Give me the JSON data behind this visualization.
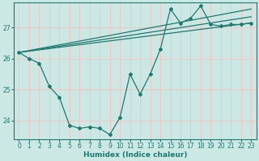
{
  "xlabel": "Humidex (Indice chaleur)",
  "ylabel": "",
  "background_color": "#cce8e5",
  "grid_color": "#f0c8c8",
  "line_color": "#1a7a6e",
  "xlim": [
    -0.5,
    23.5
  ],
  "ylim": [
    23.4,
    27.8
  ],
  "yticks": [
    24,
    25,
    26,
    27
  ],
  "xticks": [
    0,
    1,
    2,
    3,
    4,
    5,
    6,
    7,
    8,
    9,
    10,
    11,
    12,
    13,
    14,
    15,
    16,
    17,
    18,
    19,
    20,
    21,
    22,
    23
  ],
  "series_zigzag": {
    "x": [
      0,
      1,
      2,
      3,
      4,
      5,
      6,
      7,
      8,
      9,
      10,
      11,
      12,
      13,
      14,
      15,
      16,
      17,
      18,
      19,
      20,
      21,
      22,
      23
    ],
    "y": [
      26.2,
      26.0,
      25.85,
      25.1,
      24.75,
      23.85,
      23.75,
      23.8,
      23.75,
      23.55,
      24.1,
      25.5,
      24.85,
      25.5,
      26.3,
      27.6,
      27.15,
      27.3,
      27.7,
      27.1,
      27.05,
      27.1,
      27.1,
      27.15
    ]
  },
  "series_line1": {
    "x": [
      0,
      23
    ],
    "y": [
      26.2,
      27.15
    ]
  },
  "series_line2": {
    "x": [
      0,
      23
    ],
    "y": [
      26.2,
      27.6
    ]
  },
  "series_line3": {
    "x": [
      0,
      23
    ],
    "y": [
      26.2,
      27.35
    ]
  }
}
